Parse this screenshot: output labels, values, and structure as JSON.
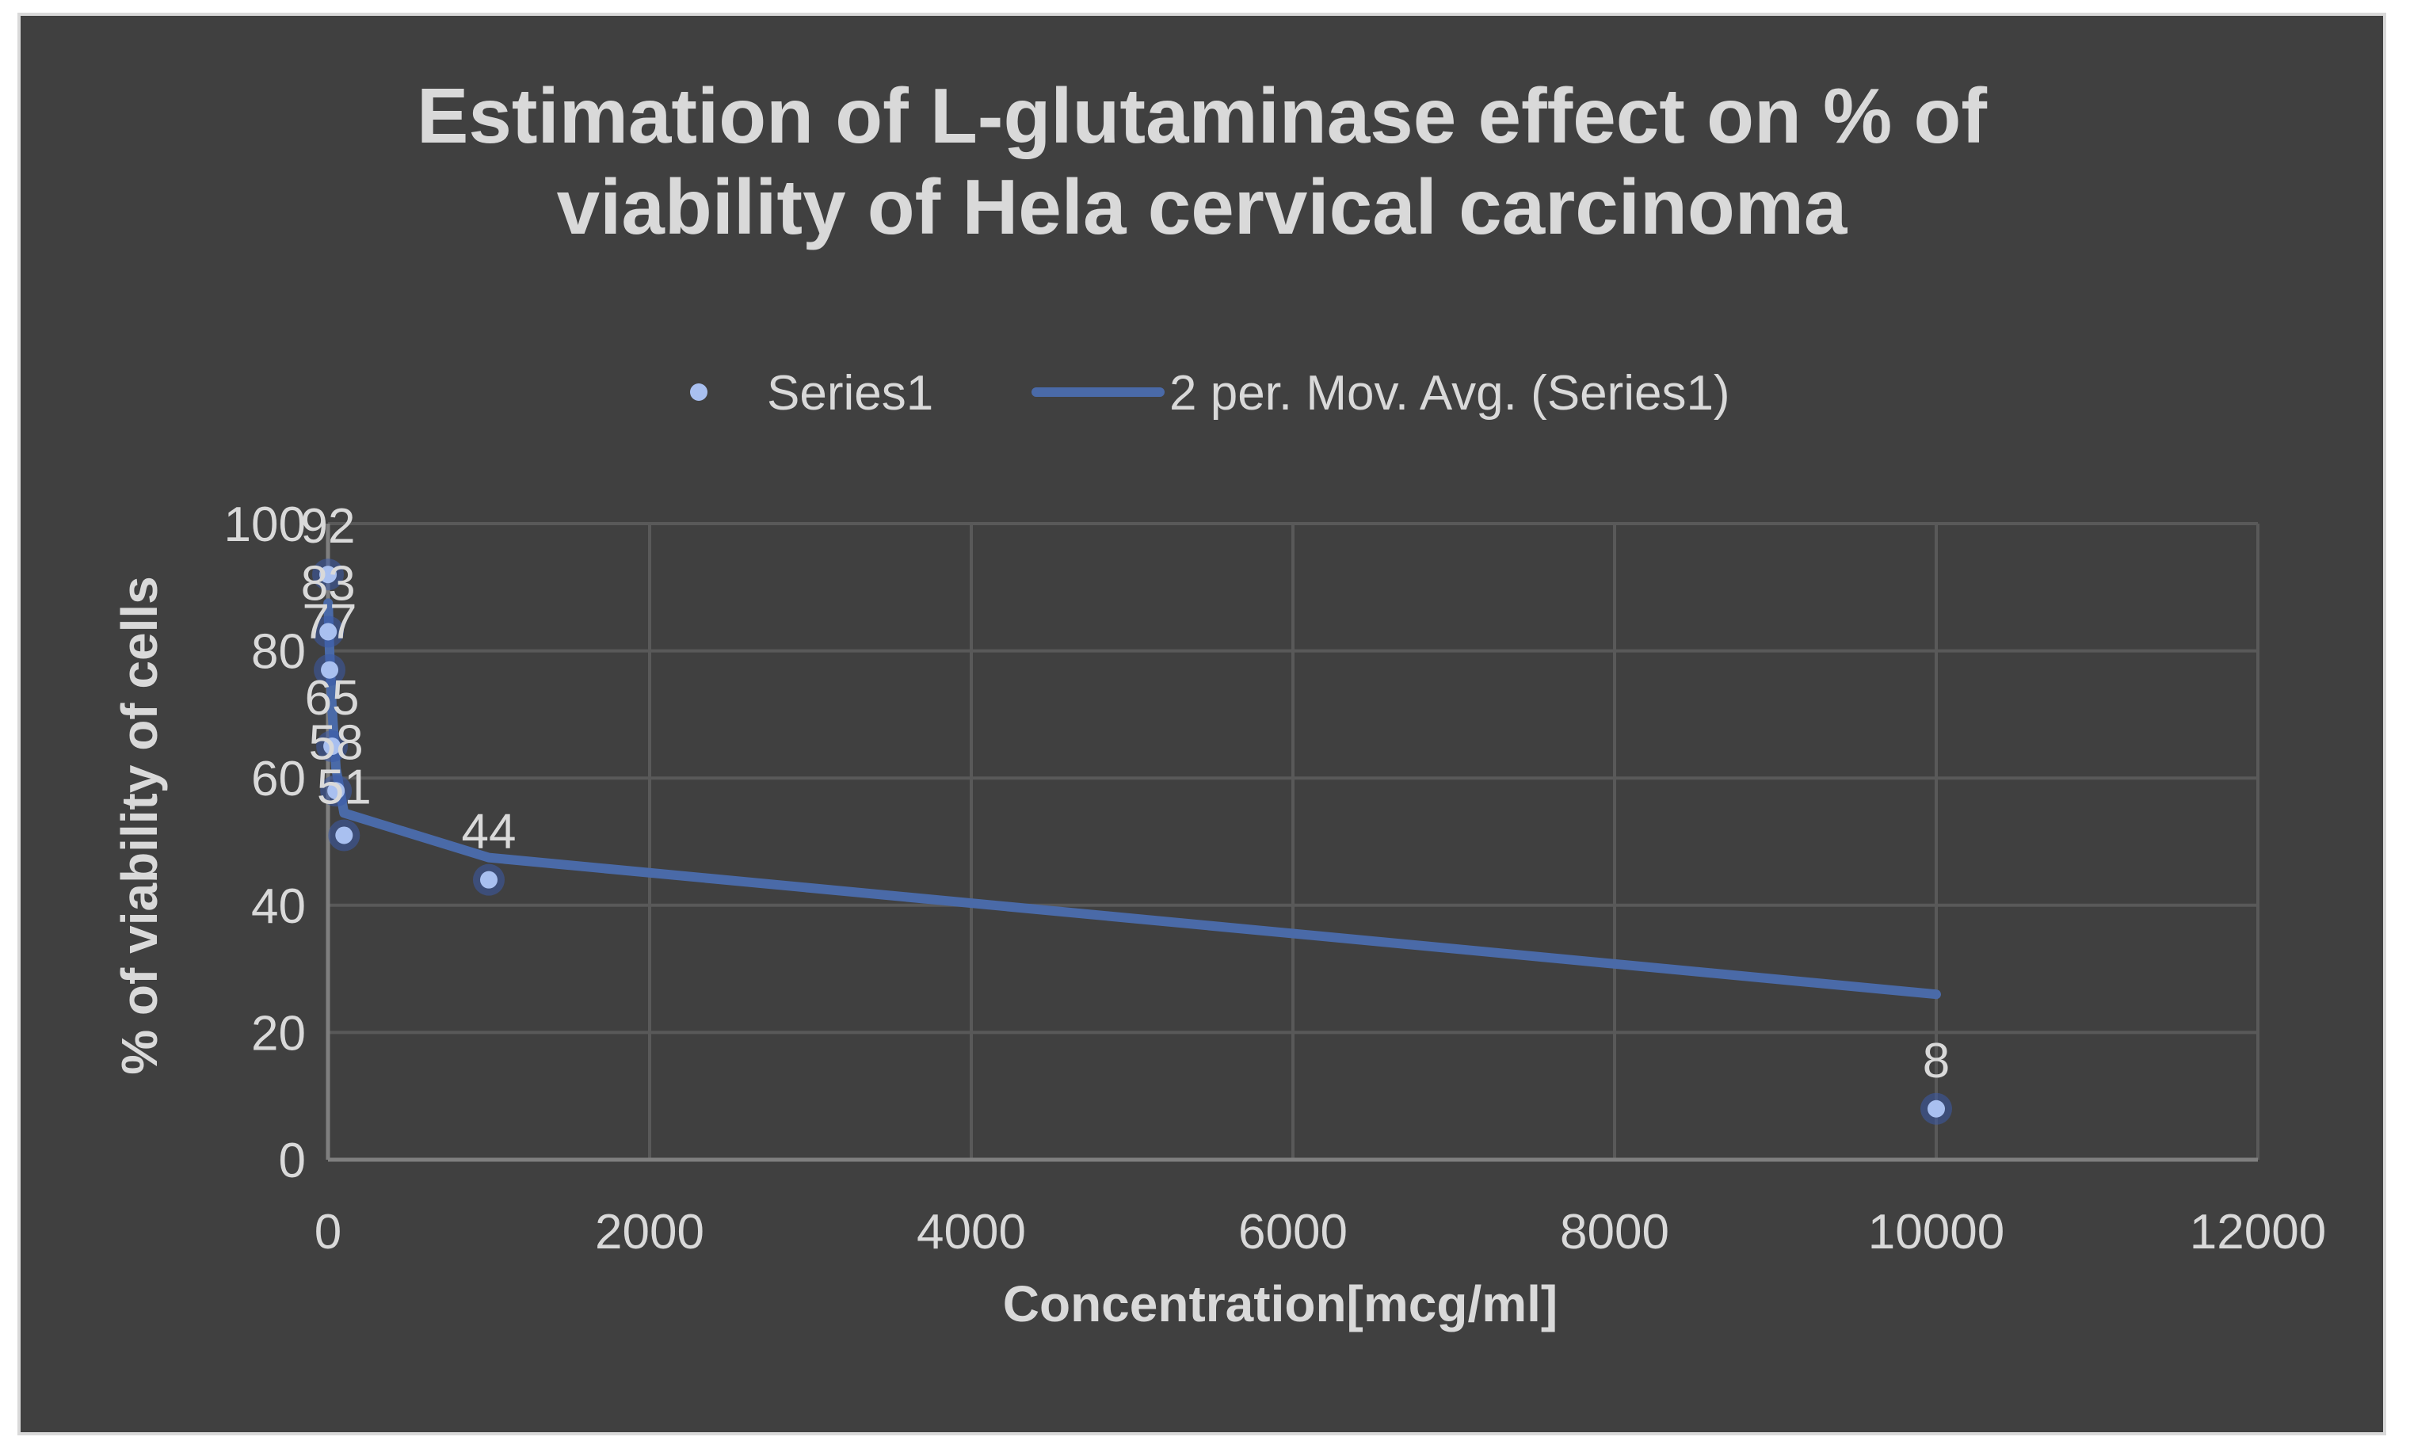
{
  "chart_data": {
    "type": "scatter",
    "title_lines": [
      "Estimation of L-glutaminase effect on % of",
      "viability of Hela cervical carcinoma"
    ],
    "xlabel": "Concentration[mcg/ml]",
    "ylabel": "% of viability of cells",
    "xlim": [
      0,
      12000
    ],
    "ylim": [
      0,
      100
    ],
    "x_ticks": [
      0,
      2000,
      4000,
      6000,
      8000,
      10000,
      12000
    ],
    "y_ticks": [
      0,
      20,
      40,
      60,
      80,
      100
    ],
    "grid": true,
    "legend_position": "top",
    "legend": {
      "series_label": "Series1",
      "trendline_label": "2 per. Mov. Avg. (Series1)"
    },
    "series": [
      {
        "name": "Series1",
        "x": [
          0.1,
          1,
          10,
          25,
          50,
          100,
          1000,
          10000
        ],
        "values": [
          92,
          83,
          77,
          65,
          58,
          51,
          44,
          8
        ],
        "labels": [
          "92",
          "83",
          "77",
          "65",
          "58",
          "51",
          "44",
          "8"
        ]
      }
    ],
    "trendline": {
      "name": "2 per. Mov. Avg. (Series1)",
      "type": "moving_average",
      "period": 2,
      "x": [
        1,
        10,
        25,
        50,
        100,
        1000,
        10000
      ],
      "values": [
        87.5,
        80,
        71,
        61.5,
        54.5,
        47.5,
        26
      ]
    },
    "colors": {
      "background": "#404040",
      "point": "#a9c0f0",
      "trendline": "#4a6aa8",
      "text": "#d9d9d9",
      "grid": "#595959"
    }
  }
}
